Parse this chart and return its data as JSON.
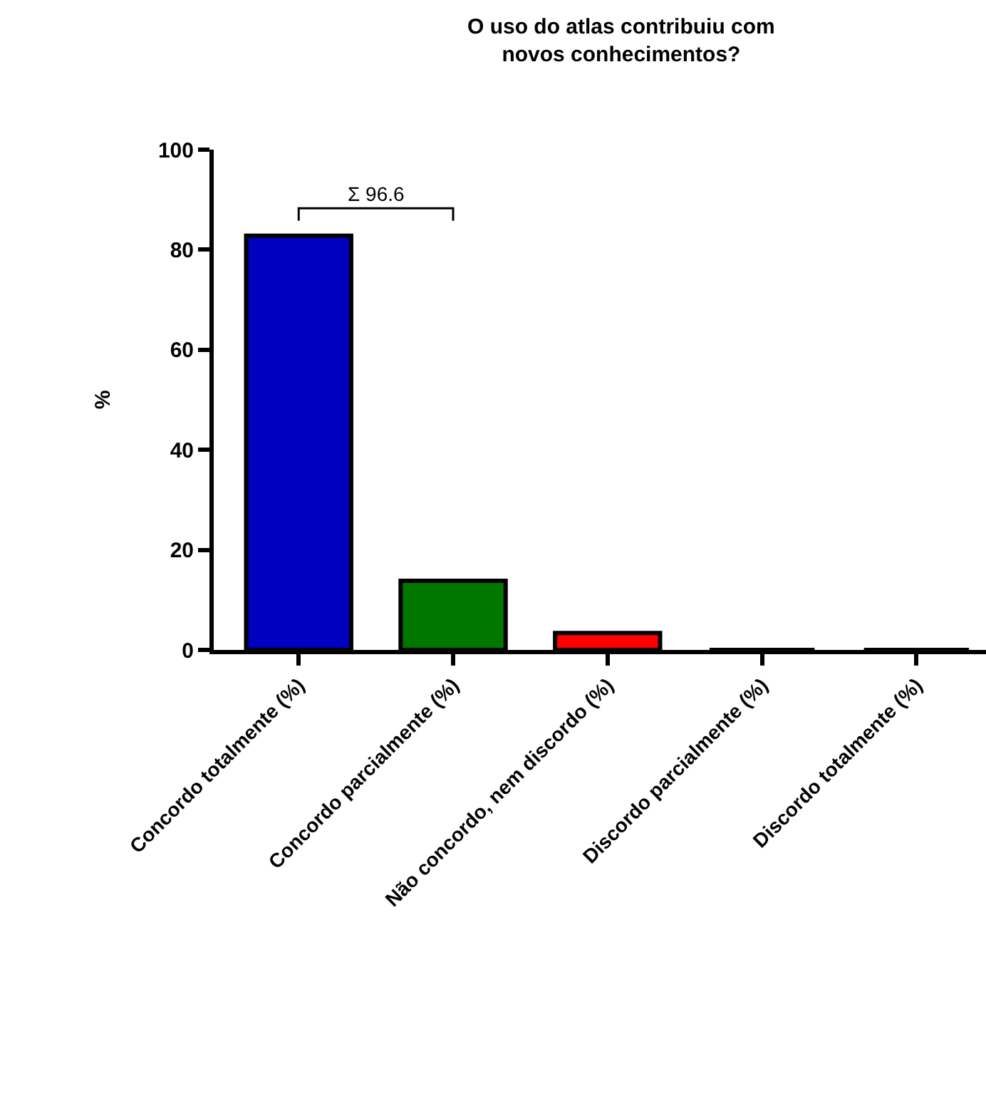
{
  "chart_data": {
    "type": "bar",
    "title": "O uso do atlas contribuiu com\nnovos conhecimentos?",
    "ylabel": "%",
    "categories": [
      "Concordo totalmente (%)",
      "Concordo parcialmente (%)",
      "Não concordo, nem discordo (%)",
      "Discordo parcialmente (%)",
      "Discordo totalmente (%)"
    ],
    "values": [
      82.8,
      13.8,
      3.4,
      0,
      0
    ],
    "colors": [
      "#0000c0",
      "#007800",
      "#ff0000",
      "#ffffff",
      "#ffffff"
    ],
    "ylim": [
      0,
      100
    ],
    "yticks": [
      0,
      20,
      40,
      60,
      80,
      100
    ],
    "annotations": [
      "Σ 96.6"
    ]
  }
}
